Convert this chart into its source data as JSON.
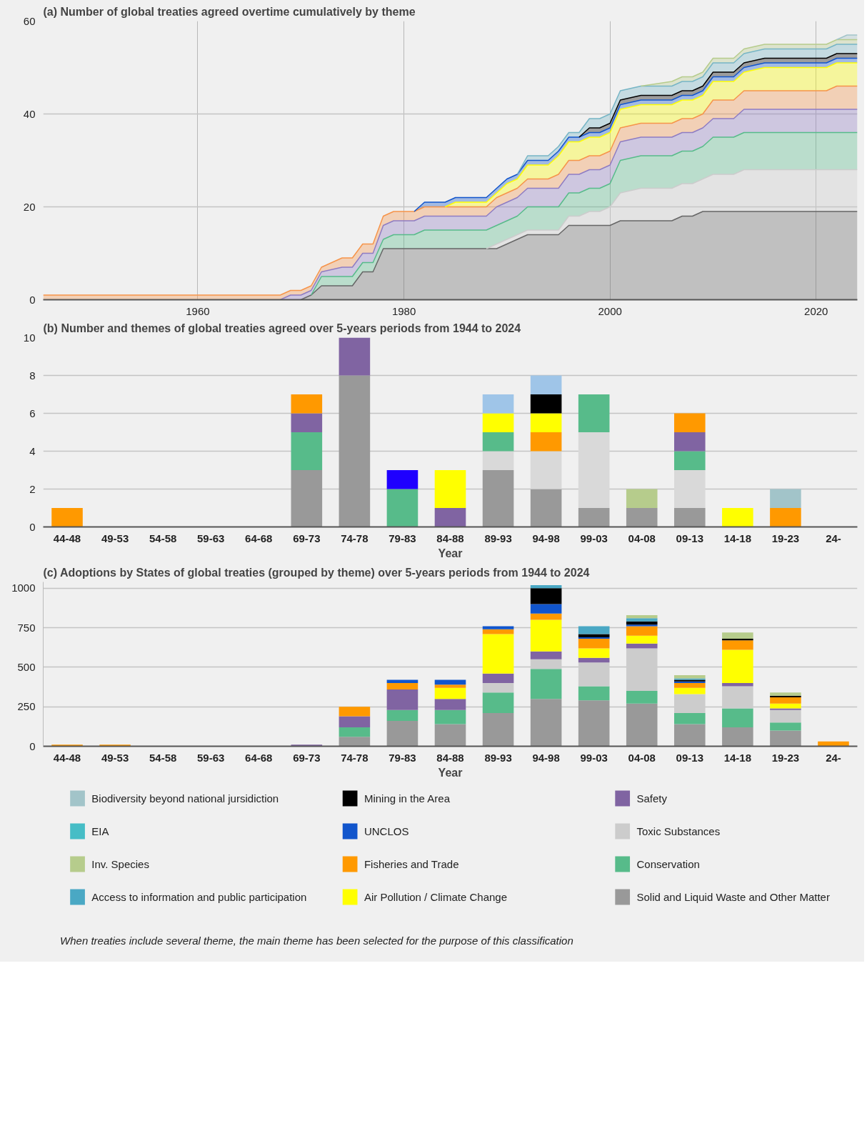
{
  "chart_data": [
    {
      "type": "area",
      "stacked": true,
      "title": "(a) Number of global treaties agreed overtime cumulatively by theme",
      "x": [
        1945,
        1968,
        1969,
        1970,
        1971,
        1972,
        1974,
        1975,
        1976,
        1977,
        1978,
        1979,
        1981,
        1982,
        1984,
        1985,
        1988,
        1989,
        1990,
        1991,
        1992,
        1994,
        1995,
        1996,
        1997,
        1998,
        1999,
        2000,
        2001,
        2003,
        2006,
        2007,
        2008,
        2009,
        2010,
        2012,
        2013,
        2015,
        2021,
        2022,
        2023,
        2024
      ],
      "xlim": [
        1945,
        2024
      ],
      "xticks": [
        1960,
        1980,
        2000,
        2020
      ],
      "ylim": [
        0,
        60
      ],
      "yticks": [
        0,
        20,
        40,
        60
      ],
      "grid": true,
      "series": [
        {
          "color": "#666666",
          "values": [
            0,
            0,
            0,
            0,
            1,
            3,
            3,
            3,
            6,
            6,
            11,
            11,
            11,
            11,
            11,
            11,
            11,
            11,
            12,
            13,
            14,
            14,
            14,
            16,
            16,
            16,
            16,
            16,
            17,
            17,
            17,
            18,
            18,
            19,
            19,
            19,
            19,
            19,
            19,
            19,
            19,
            19
          ]
        },
        {
          "color": "#cccccc",
          "values": [
            0,
            0,
            0,
            0,
            0,
            0,
            0,
            0,
            0,
            0,
            0,
            0,
            0,
            0,
            0,
            0,
            0,
            1,
            1,
            1,
            1,
            1,
            1,
            2,
            2,
            3,
            3,
            4,
            6,
            7,
            7,
            7,
            7,
            7,
            8,
            8,
            9,
            9,
            9,
            9,
            9,
            9
          ]
        },
        {
          "color": "#57bb8a",
          "values": [
            0,
            0,
            0,
            0,
            0,
            2,
            2,
            2,
            2,
            2,
            2,
            3,
            3,
            4,
            4,
            4,
            4,
            4,
            4,
            4,
            5,
            5,
            5,
            5,
            5,
            5,
            5,
            5,
            7,
            7,
            7,
            7,
            7,
            7,
            8,
            8,
            8,
            8,
            8,
            8,
            8,
            8
          ]
        },
        {
          "color": "#8e7cc3",
          "values": [
            0,
            0,
            1,
            1,
            1,
            1,
            2,
            2,
            2,
            2,
            3,
            3,
            3,
            3,
            3,
            3,
            3,
            4,
            4,
            4,
            4,
            4,
            4,
            4,
            4,
            4,
            4,
            4,
            4,
            4,
            4,
            4,
            4,
            4,
            4,
            4,
            5,
            5,
            5,
            5,
            5,
            5
          ]
        },
        {
          "color": "#f6944a",
          "values": [
            1,
            1,
            1,
            1,
            1,
            1,
            2,
            2,
            2,
            2,
            2,
            2,
            2,
            2,
            2,
            2,
            2,
            2,
            2,
            2,
            2,
            2,
            3,
            3,
            3,
            3,
            3,
            3,
            3,
            3,
            3,
            3,
            3,
            3,
            4,
            4,
            4,
            4,
            4,
            5,
            5,
            5
          ]
        },
        {
          "color": "#ffff00",
          "values": [
            0,
            0,
            0,
            0,
            0,
            0,
            0,
            0,
            0,
            0,
            0,
            0,
            0,
            0,
            0,
            1,
            1,
            1,
            2,
            2,
            3,
            3,
            4,
            4,
            4,
            4,
            4,
            4,
            4,
            4,
            4,
            4,
            4,
            4,
            4,
            4,
            4,
            5,
            5,
            5,
            5,
            5
          ]
        },
        {
          "color": "#1155cc",
          "values": [
            0,
            0,
            0,
            0,
            0,
            0,
            0,
            0,
            0,
            0,
            0,
            0,
            0,
            1,
            1,
            1,
            1,
            1,
            1,
            1,
            1,
            1,
            1,
            1,
            1,
            1,
            1,
            1,
            1,
            1,
            1,
            1,
            1,
            1,
            1,
            1,
            1,
            1,
            1,
            1,
            1,
            1
          ]
        },
        {
          "color": "#000000",
          "values": [
            0,
            0,
            0,
            0,
            0,
            0,
            0,
            0,
            0,
            0,
            0,
            0,
            0,
            0,
            0,
            0,
            0,
            0,
            0,
            0,
            0,
            0,
            0,
            0,
            0,
            1,
            1,
            1,
            1,
            1,
            1,
            1,
            1,
            1,
            1,
            1,
            1,
            1,
            1,
            1,
            1,
            1
          ]
        },
        {
          "color": "#76b5c5",
          "values": [
            0,
            0,
            0,
            0,
            0,
            0,
            0,
            0,
            0,
            0,
            0,
            0,
            0,
            0,
            0,
            0,
            0,
            0,
            0,
            0,
            1,
            1,
            1,
            1,
            1,
            2,
            2,
            2,
            2,
            2,
            2,
            2,
            2,
            2,
            2,
            2,
            2,
            2,
            2,
            2,
            2,
            2
          ]
        },
        {
          "color": "#b6cc8c",
          "values": [
            0,
            0,
            0,
            0,
            0,
            0,
            0,
            0,
            0,
            0,
            0,
            0,
            0,
            0,
            0,
            0,
            0,
            0,
            0,
            0,
            0,
            0,
            0,
            0,
            0,
            0,
            0,
            0,
            0,
            0,
            1,
            1,
            1,
            1,
            1,
            1,
            1,
            1,
            1,
            1,
            1,
            1
          ]
        },
        {
          "color": "#a2c4c9",
          "values": [
            0,
            0,
            0,
            0,
            0,
            0,
            0,
            0,
            0,
            0,
            0,
            0,
            0,
            0,
            0,
            0,
            0,
            0,
            0,
            0,
            0,
            0,
            0,
            0,
            0,
            0,
            0,
            0,
            0,
            0,
            0,
            0,
            0,
            0,
            0,
            0,
            0,
            0,
            0,
            0,
            1,
            1
          ]
        }
      ]
    },
    {
      "type": "bar",
      "stacked": true,
      "title": "(b) Number and themes of global treaties agreed over 5-years periods from 1944 to 2024",
      "xlabel": "Year",
      "categories": [
        "44-48",
        "49-53",
        "54-58",
        "59-63",
        "64-68",
        "69-73",
        "74-78",
        "79-83",
        "84-88",
        "89-93",
        "94-98",
        "99-03",
        "04-08",
        "09-13",
        "14-18",
        "19-23",
        "24-"
      ],
      "ylim": [
        0,
        10
      ],
      "yticks": [
        0,
        2,
        4,
        6,
        8,
        10
      ],
      "grid": "y",
      "series": [
        {
          "color": "#999999",
          "values": [
            null,
            null,
            null,
            null,
            null,
            3,
            8,
            null,
            null,
            3,
            2,
            1,
            1,
            1,
            null,
            null,
            null
          ]
        },
        {
          "color": "#d9d9d9",
          "values": [
            null,
            null,
            null,
            null,
            null,
            null,
            null,
            null,
            null,
            1,
            2,
            4,
            null,
            2,
            null,
            null,
            null
          ]
        },
        {
          "color": "#57bb8a",
          "values": [
            null,
            null,
            null,
            null,
            null,
            2,
            null,
            2,
            null,
            1,
            null,
            2,
            null,
            1,
            null,
            null,
            null
          ]
        },
        {
          "color": "#8064a2",
          "values": [
            null,
            null,
            null,
            null,
            null,
            1,
            2,
            null,
            1,
            null,
            null,
            null,
            null,
            1,
            null,
            null,
            null
          ]
        },
        {
          "color": "#ff9900",
          "values": [
            1,
            null,
            null,
            null,
            null,
            1,
            null,
            null,
            null,
            null,
            1,
            null,
            null,
            1,
            null,
            1,
            null
          ]
        },
        {
          "color": "#ffff00",
          "values": [
            null,
            null,
            null,
            null,
            null,
            null,
            null,
            null,
            2,
            1,
            1,
            null,
            null,
            null,
            1,
            null,
            null
          ]
        },
        {
          "color": "#1f00ff",
          "values": [
            null,
            null,
            null,
            null,
            null,
            null,
            null,
            1,
            null,
            null,
            null,
            null,
            null,
            null,
            null,
            null,
            null
          ]
        },
        {
          "color": "#000000",
          "values": [
            null,
            null,
            null,
            null,
            null,
            null,
            null,
            null,
            null,
            null,
            1,
            null,
            null,
            null,
            null,
            null,
            null
          ]
        },
        {
          "color": "#9fc5e8",
          "values": [
            null,
            null,
            null,
            null,
            null,
            null,
            null,
            null,
            null,
            1,
            1,
            null,
            null,
            null,
            null,
            null,
            null
          ]
        },
        {
          "color": "#b6cc8c",
          "values": [
            null,
            null,
            null,
            null,
            null,
            null,
            null,
            null,
            null,
            null,
            null,
            null,
            1,
            null,
            null,
            null,
            null
          ]
        },
        {
          "color": "#a2c4c9",
          "values": [
            null,
            null,
            null,
            null,
            null,
            null,
            null,
            null,
            null,
            null,
            null,
            null,
            null,
            null,
            null,
            1,
            null
          ]
        }
      ]
    },
    {
      "type": "bar",
      "stacked": true,
      "title": "(c) Adoptions by States of global treaties (grouped by theme) over 5-years periods from 1944 to 2024",
      "xlabel": "Year",
      "categories": [
        "44-48",
        "49-53",
        "54-58",
        "59-63",
        "64-68",
        "69-73",
        "74-78",
        "79-83",
        "84-88",
        "89-93",
        "94-98",
        "99-03",
        "04-08",
        "09-13",
        "14-18",
        "19-23",
        "24-"
      ],
      "ylim": [
        0,
        1040
      ],
      "yticks": [
        0,
        250,
        500,
        750,
        1000
      ],
      "grid": "y",
      "legend": "bottom",
      "annotations": [
        "When treaties include several theme, the main theme has been selected for the purpose of this classification"
      ],
      "series": [
        {
          "name": "Solid and Liquid Waste and Other Matter",
          "color": "#999999",
          "values": [
            null,
            null,
            null,
            null,
            null,
            null,
            60,
            160,
            140,
            210,
            300,
            290,
            270,
            140,
            120,
            100,
            null
          ]
        },
        {
          "name": "Conservation",
          "color": "#57bb8a",
          "values": [
            null,
            null,
            null,
            null,
            null,
            null,
            60,
            70,
            90,
            130,
            190,
            90,
            80,
            70,
            120,
            50,
            null
          ]
        },
        {
          "name": "Toxic Substances",
          "color": "#cccccc",
          "values": [
            null,
            null,
            null,
            null,
            null,
            null,
            null,
            null,
            null,
            60,
            60,
            150,
            270,
            120,
            140,
            80,
            null
          ]
        },
        {
          "name": "Safety",
          "color": "#8064a2",
          "values": [
            null,
            null,
            null,
            null,
            null,
            10,
            70,
            130,
            70,
            60,
            50,
            30,
            30,
            null,
            20,
            10,
            null
          ]
        },
        {
          "name": "Air Pollution / Climate Change",
          "color": "#ffff00",
          "values": [
            null,
            null,
            null,
            null,
            null,
            null,
            null,
            null,
            70,
            250,
            200,
            60,
            50,
            40,
            210,
            30,
            null
          ]
        },
        {
          "name": "Fisheries and Trade",
          "color": "#ff9900",
          "values": [
            10,
            10,
            null,
            null,
            null,
            null,
            60,
            40,
            20,
            30,
            40,
            60,
            60,
            30,
            60,
            40,
            30
          ]
        },
        {
          "name": "UNCLOS",
          "color": "#1155cc",
          "values": [
            null,
            null,
            null,
            null,
            null,
            null,
            null,
            20,
            30,
            20,
            60,
            10,
            10,
            10,
            null,
            null,
            null
          ]
        },
        {
          "name": "Mining in the Area",
          "color": "#000000",
          "values": [
            null,
            null,
            null,
            null,
            null,
            null,
            null,
            null,
            null,
            null,
            100,
            20,
            20,
            10,
            10,
            10,
            null
          ]
        },
        {
          "name": "Access to information and public participation",
          "color": "#4aa8c4",
          "values": [
            null,
            null,
            null,
            null,
            null,
            null,
            null,
            null,
            null,
            null,
            20,
            50,
            20,
            10,
            null,
            null,
            null
          ]
        },
        {
          "name": "Inv. Species",
          "color": "#b6cc8c",
          "values": [
            null,
            null,
            null,
            null,
            null,
            null,
            null,
            null,
            null,
            null,
            null,
            null,
            20,
            20,
            40,
            20,
            null
          ]
        },
        {
          "name": "EIA",
          "color": "#46bdc6",
          "values": [
            null,
            null,
            null,
            null,
            null,
            null,
            null,
            null,
            null,
            null,
            null,
            null,
            null,
            null,
            null,
            null,
            null
          ]
        },
        {
          "name": "Biodiversity beyond national jursidiction",
          "color": "#a2c4c9",
          "values": [
            null,
            null,
            null,
            null,
            null,
            null,
            null,
            null,
            null,
            null,
            null,
            null,
            null,
            null,
            null,
            null,
            null
          ]
        }
      ]
    }
  ]
}
